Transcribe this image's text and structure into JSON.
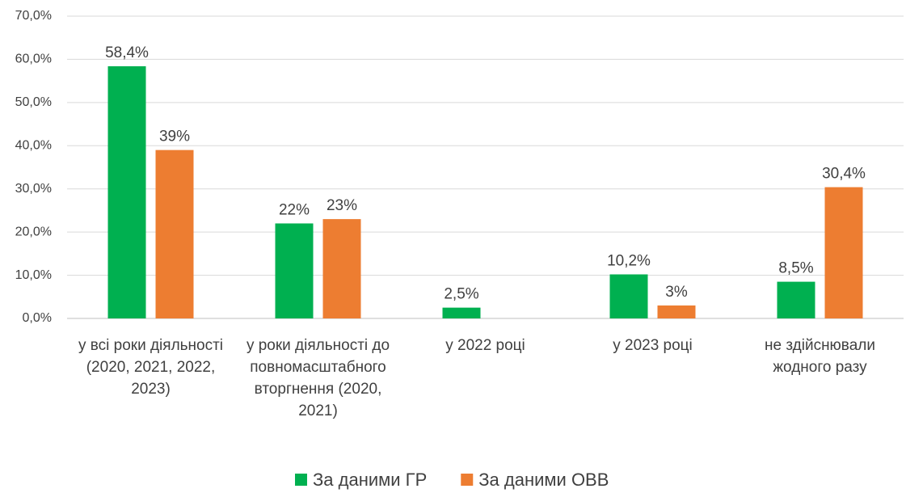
{
  "chart_data": {
    "type": "bar",
    "categories": [
      "у всі роки діяльності (2020, 2021, 2022, 2023)",
      "у роки діяльності до повномасштабного вторгнення (2020, 2021)",
      "у 2022 році",
      "у 2023 році",
      "не здійснювали жодного разу"
    ],
    "series": [
      {
        "name": "За даними ГР",
        "color": "#00b050",
        "values": [
          58.4,
          22,
          2.5,
          10.2,
          8.5
        ],
        "value_labels": [
          "58,4%",
          "22%",
          "2,5%",
          "10,2%",
          "8,5%"
        ]
      },
      {
        "name": "За даними ОВВ",
        "color": "#ed7d31",
        "values": [
          39,
          23,
          null,
          3,
          30.4
        ],
        "value_labels": [
          "39%",
          "23%",
          null,
          "3%",
          "30,4%"
        ]
      }
    ],
    "ylim": [
      0,
      70
    ],
    "yticks": [
      {
        "value": 0,
        "label": "0,0%"
      },
      {
        "value": 10,
        "label": "10,0%"
      },
      {
        "value": 20,
        "label": "20,0%"
      },
      {
        "value": 30,
        "label": "30,0%"
      },
      {
        "value": 40,
        "label": "40,0%"
      },
      {
        "value": 50,
        "label": "50,0%"
      },
      {
        "value": 60,
        "label": "60,0%"
      },
      {
        "value": 70,
        "label": "70,0%"
      }
    ],
    "grid": true,
    "legend": "bottom"
  }
}
